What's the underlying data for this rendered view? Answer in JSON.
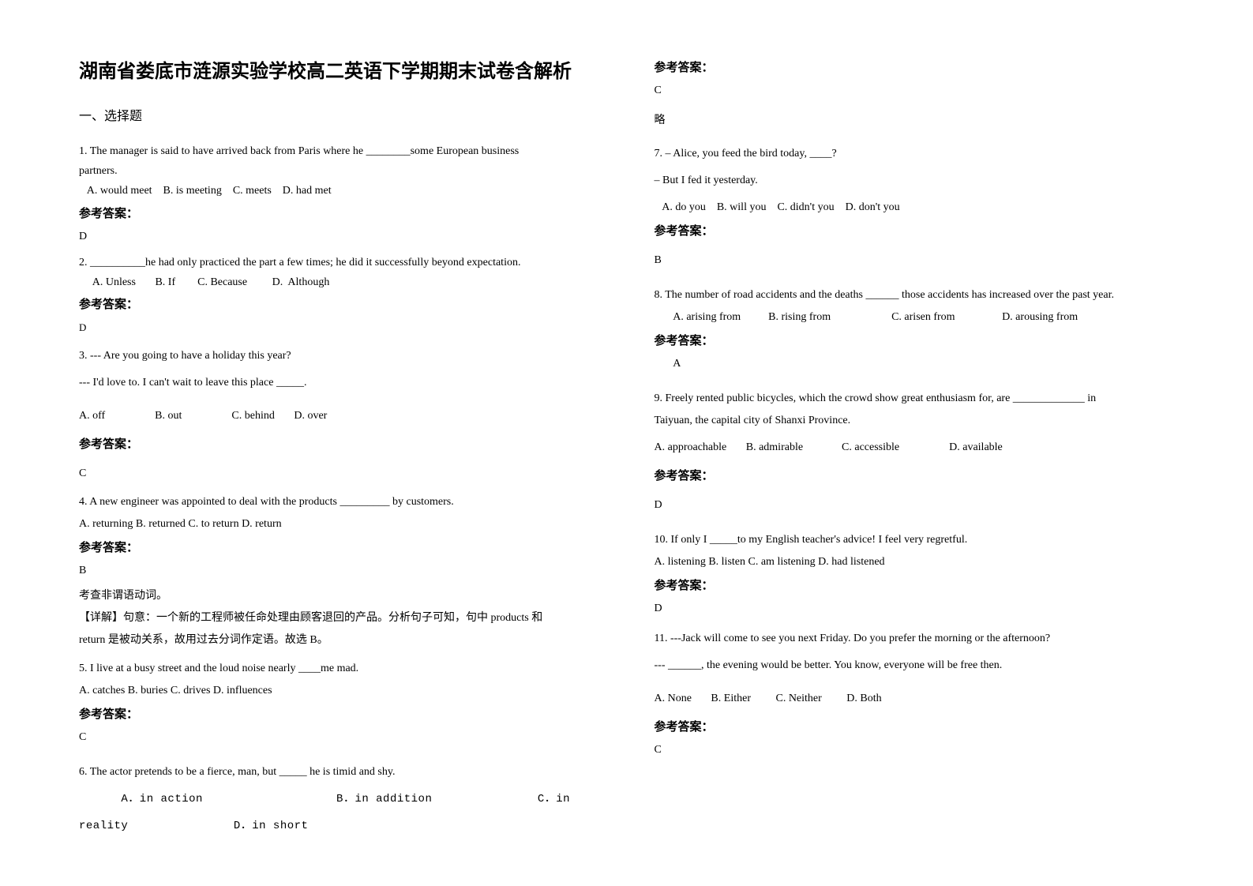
{
  "title": "湖南省娄底市涟源实验学校高二英语下学期期末试卷含解析",
  "section1": "一、选择题",
  "ansLabel": "参考答案：",
  "left": {
    "q1": {
      "line1": "1. The manager is said to have arrived back from Paris where he ________some European business",
      "line2": "partners.",
      "opts": "   A. would meet    B. is meeting    C. meets    D. had met",
      "ans": "D"
    },
    "q2": {
      "line1": "2. __________he had only practiced the part a few times; he did it successfully beyond expectation.",
      "opts": "     A. Unless       B. If        C. Because         D.  Although",
      "ans": "D"
    },
    "q3": {
      "line1": "3. --- Are you going to have a holiday this year?",
      "line2": "--- I'd love to. I can't wait to leave this place _____.",
      "opts": "A. off                  B. out                  C. behind       D. over",
      "ans": "C"
    },
    "q4": {
      "line1": "4. A new engineer was appointed to deal with the products _________ by customers.",
      "opts": "A. returning    B. returned   C. to return    D. return",
      "ans": "B",
      "exp1": "考查非谓语动词。",
      "exp2": "【详解】句意：一个新的工程师被任命处理由顾客退回的产品。分析句子可知，句中 products 和",
      "exp3": "return 是被动关系，故用过去分词作定语。故选 B。"
    },
    "q5": {
      "line1": "5. I live at a busy street and the loud noise nearly ____me mad.",
      "opts": "A. catches    B. buries     C. drives    D. influences",
      "ans": "C"
    },
    "q6": {
      "line1": "6. The actor pretends to be a fierce, man, but _____ he is timid and shy.",
      "opts1": "      A．in action                   B．in addition               C．in",
      "opts2": "reality               D．in short"
    }
  },
  "right": {
    "q6": {
      "ans": "C",
      "note": "略"
    },
    "q7": {
      "line1": "7. – Alice, you feed the bird today, ____?",
      "line2": "– But I fed it yesterday.",
      "opts": "   A. do you    B. will you    C. didn't you    D. don't you",
      "ans": "B"
    },
    "q8": {
      "line1": "8. The number of road accidents and the deaths ______ those accidents has increased over the past year.",
      "opts": "       A. arising from          B. rising from                      C. arisen from                 D. arousing from",
      "ans": "       A"
    },
    "q9": {
      "line1": "9. Freely rented public bicycles, which the crowd show great enthusiasm for, are _____________ in",
      "line2": "Taiyuan, the capital city of Shanxi Province.",
      "opts": "A. approachable       B. admirable              C. accessible                  D. available",
      "ans": "D"
    },
    "q10": {
      "line1": "10. If only I _____to my English teacher's advice! I feel very regretful.",
      "opts": "A. listening    B. listen    C. am listening    D. had listened",
      "ans": "D"
    },
    "q11": {
      "line1": "11. ---Jack will come to see you next Friday. Do you prefer the morning or the afternoon?",
      "line2": "--- ______, the evening would be better. You know, everyone will be free then.",
      "opts": "A. None       B. Either         C. Neither         D. Both",
      "ans": "C"
    }
  }
}
